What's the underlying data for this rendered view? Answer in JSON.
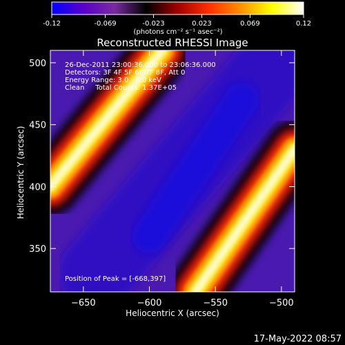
{
  "chart_data": {
    "type": "heatmap",
    "title": "Reconstructed RHESSI Image",
    "colorbar": {
      "ticks": [
        "-0.12",
        "-0.069",
        "-0.023",
        "0.023",
        "0.069",
        "0.12"
      ],
      "tick_values": [
        -0.12,
        -0.069,
        -0.023,
        0.023,
        0.069,
        0.12
      ],
      "range": [
        -0.12,
        0.12
      ],
      "unit_label": "(photons cm⁻² s⁻¹ asec⁻²)",
      "colormap": [
        "#0000ff",
        "#5a00c8",
        "#7a2aa0",
        "#000000",
        "#a00000",
        "#ff3000",
        "#ff9000",
        "#ffff00",
        "#ffffff"
      ]
    },
    "xlabel": "Heliocentric X (arcsec)",
    "ylabel": "Heliocentric Y (arcsec)",
    "xlim": [
      -675,
      -490
    ],
    "ylim": [
      315,
      510
    ],
    "x_ticks": [
      -650,
      -600,
      -550,
      -500
    ],
    "y_ticks": [
      350,
      400,
      450,
      500
    ],
    "x_tick_labels": [
      "−650",
      "−600",
      "−550",
      "−500"
    ],
    "y_tick_labels": [
      "350",
      "400",
      "450",
      "500"
    ],
    "annotations": {
      "time": "26-Dec-2011 23:00:36.000 to 23:06:36.000",
      "detectors": "Detectors: 3F 4F 5F 6F 7F 8F, Att 0",
      "energy": "Energy Range: 3.0 - 6.0 keV",
      "method": "Clean     Total Counts: 1.37E+05",
      "peak": "Position of Peak = [-668,397]"
    },
    "peak_position": [
      -668,
      397
    ],
    "features": [
      {
        "name": "bright-band-left",
        "from": [
          -675,
          400
        ],
        "to": [
          -590,
          510
        ],
        "peak_value": 0.12
      },
      {
        "name": "bright-band-right",
        "from": [
          -565,
          315
        ],
        "to": [
          -490,
          430
        ],
        "peak_value": 0.12
      },
      {
        "name": "background",
        "value": -0.06
      }
    ],
    "timestamp": "17-May-2022 08:57"
  },
  "colors": {
    "background": "#000000",
    "text": "#ffffff"
  }
}
